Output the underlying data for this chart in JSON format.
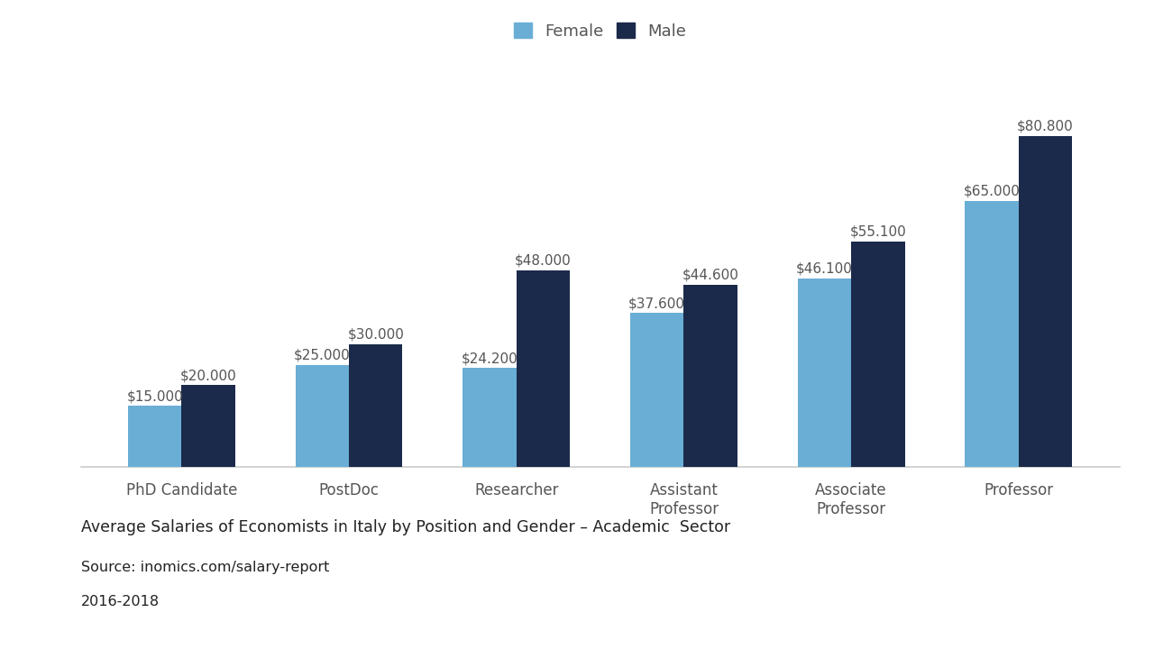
{
  "categories": [
    "PhD Candidate",
    "PostDoc",
    "Researcher",
    "Assistant\nProfessor",
    "Associate\nProfessor",
    "Professor"
  ],
  "female_values": [
    15000,
    25000,
    24200,
    37600,
    46100,
    65000
  ],
  "male_values": [
    20000,
    30000,
    48000,
    44600,
    55100,
    80800
  ],
  "female_labels": [
    "$15.000",
    "$25.000",
    "$24.200",
    "$37.600",
    "$46.100",
    "$65.000"
  ],
  "male_labels": [
    "$20.000",
    "$30.000",
    "$48.000",
    "$44.600",
    "$55.100",
    "$80.800"
  ],
  "female_color": "#6aaed6",
  "male_color": "#1b2a4a",
  "background_color": "#ffffff",
  "legend_female": "Female",
  "legend_male": "Male",
  "title_line1": "Average Salaries of Economists in Italy by Position and Gender – Academic  Sector",
  "title_line2": "Source: inomics.com/salary-report",
  "title_line3": "2016-2018",
  "bar_width": 0.32,
  "ylim": [
    0,
    95000
  ],
  "label_fontsize": 11,
  "tick_fontsize": 12,
  "legend_fontsize": 13,
  "annotation_color": "#555555"
}
